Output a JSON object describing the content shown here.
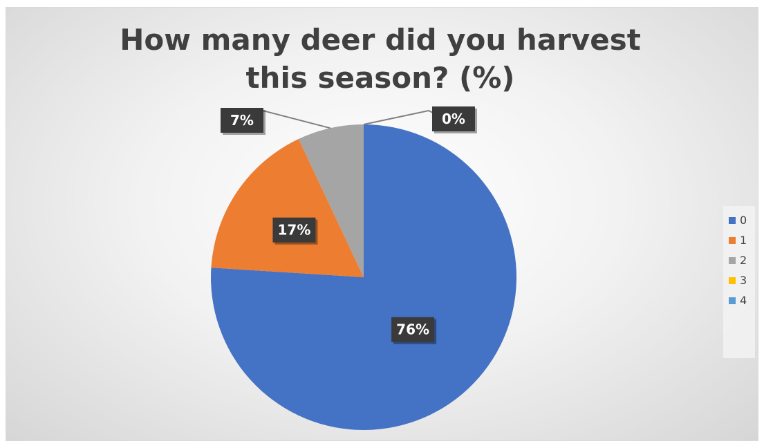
{
  "chart_data": {
    "type": "pie",
    "title": "How many deer did you harvest this season? (%)",
    "categories": [
      "0",
      "1",
      "2",
      "3",
      "4"
    ],
    "values": [
      76,
      17,
      7,
      0,
      0
    ],
    "data_labels": [
      "76%",
      "17%",
      "7%",
      "0%",
      ""
    ],
    "colors": [
      "#4472c4",
      "#ed7d31",
      "#a5a5a5",
      "#ffc000",
      "#5b9bd5"
    ],
    "legend_position": "right"
  }
}
